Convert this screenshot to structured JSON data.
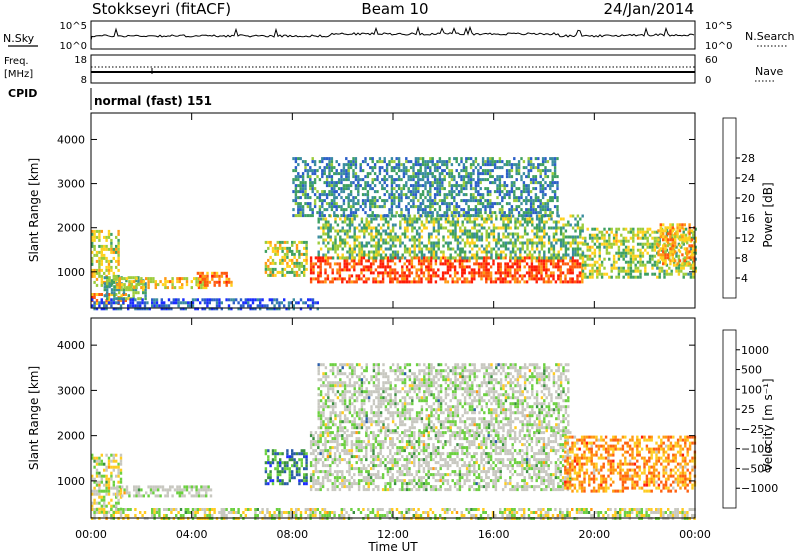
{
  "header": {
    "station": "Stokkseyri (fitACF)",
    "beam": "Beam 10",
    "date": "24/Jan/2014"
  },
  "summary_panels": {
    "nsky": {
      "label": "N.Sky",
      "ticks": [
        "10^5",
        "10^0"
      ]
    },
    "nsearch": {
      "label": "N.Search",
      "ticks": [
        "10^5",
        "10^0"
      ]
    },
    "freq": {
      "label_line1": "Freq.",
      "label_line2": "[MHz]",
      "ticks": [
        "18",
        "8"
      ]
    },
    "nave": {
      "label": "Nave",
      "ticks": [
        "60",
        "0"
      ]
    },
    "cpid": {
      "label": "CPID",
      "mode": "normal (fast) 151"
    }
  },
  "chart_data": [
    {
      "type": "heatmap",
      "parameter": "power",
      "ylabel": "Slant Range [km]",
      "xlabel": "",
      "x_ticks": [
        "00:00",
        "04:00",
        "08:00",
        "12:00",
        "16:00",
        "20:00",
        "00:00"
      ],
      "x_range_hours": [
        0,
        24
      ],
      "y_ticks": [
        1000,
        2000,
        3000,
        4000
      ],
      "ylim": [
        180,
        4600
      ],
      "colorbar": {
        "label": "Power [dB]",
        "ticks": [
          "4",
          "8",
          "12",
          "16",
          "20",
          "24",
          "28"
        ],
        "colors": [
          "#1a2bff",
          "#2c5fc8",
          "#3a8ca0",
          "#3ea060",
          "#9ccc3c",
          "#ffd21e",
          "#ff9a14",
          "#ff5a0e",
          "#ff1c06"
        ]
      },
      "echo_regions": [
        {
          "t0": 0.0,
          "t1": 1.4,
          "r0": 260,
          "r1": 520,
          "value": 0.72
        },
        {
          "t0": 0.0,
          "t1": 1.1,
          "r0": 700,
          "r1": 1950,
          "value": 0.55
        },
        {
          "t0": 0.5,
          "t1": 2.2,
          "r0": 380,
          "r1": 900,
          "value": 0.4
        },
        {
          "t0": 1.0,
          "t1": 4.6,
          "r0": 650,
          "r1": 880,
          "value": 0.62
        },
        {
          "t0": 4.2,
          "t1": 5.6,
          "r0": 700,
          "r1": 1000,
          "value": 0.78
        },
        {
          "t0": 6.9,
          "t1": 8.6,
          "r0": 950,
          "r1": 1700,
          "value": 0.55
        },
        {
          "t0": 8.7,
          "t1": 19.5,
          "r0": 750,
          "r1": 1350,
          "value": 0.88
        },
        {
          "t0": 9.0,
          "t1": 19.5,
          "r0": 1300,
          "r1": 2300,
          "value": 0.45
        },
        {
          "t0": 8.0,
          "t1": 18.5,
          "r0": 2300,
          "r1": 3600,
          "value": 0.3
        },
        {
          "t0": 19.5,
          "t1": 24.0,
          "r0": 850,
          "r1": 2000,
          "value": 0.5
        },
        {
          "t0": 22.5,
          "t1": 24.0,
          "r0": 1200,
          "r1": 2100,
          "value": 0.7
        },
        {
          "t0": 0.0,
          "t1": 9.0,
          "r0": 180,
          "r1": 400,
          "value": 0.15
        }
      ]
    },
    {
      "type": "heatmap",
      "parameter": "velocity",
      "ylabel": "Slant Range [km]",
      "xlabel": "Time UT",
      "x_ticks": [
        "00:00",
        "04:00",
        "08:00",
        "12:00",
        "16:00",
        "20:00",
        "00:00"
      ],
      "x_range_hours": [
        0,
        24
      ],
      "y_ticks": [
        1000,
        2000,
        3000,
        4000
      ],
      "ylim": [
        180,
        4600
      ],
      "colorbar": {
        "label": "Velocity [m s⁻¹]",
        "ticks": [
          "1000",
          "500",
          "100",
          "25",
          "−25",
          "−100",
          "−500",
          "−1000"
        ],
        "colors": [
          "#1a2bff",
          "#2a5ca8",
          "#3a9040",
          "#6cd040",
          "#c8c8c0",
          "#ffcc22",
          "#ff9a10",
          "#ff6010",
          "#ff1a08"
        ]
      },
      "echo_regions": [
        {
          "t0": 0.0,
          "t1": 1.2,
          "r0": 300,
          "r1": 1600,
          "value": 0.5
        },
        {
          "t0": 1.0,
          "t1": 4.8,
          "r0": 650,
          "r1": 900,
          "value": 0.45
        },
        {
          "t0": 6.9,
          "t1": 8.6,
          "r0": 950,
          "r1": 1700,
          "value": 0.25
        },
        {
          "t0": 8.7,
          "t1": 19.0,
          "r0": 800,
          "r1": 2100,
          "value": 0.45
        },
        {
          "t0": 9.0,
          "t1": 19.0,
          "r0": 2100,
          "r1": 3600,
          "value": 0.45
        },
        {
          "t0": 18.8,
          "t1": 24.0,
          "r0": 800,
          "r1": 2000,
          "value": 0.72
        },
        {
          "t0": 0.0,
          "t1": 24.0,
          "r0": 180,
          "r1": 400,
          "value": 0.5
        }
      ]
    }
  ]
}
